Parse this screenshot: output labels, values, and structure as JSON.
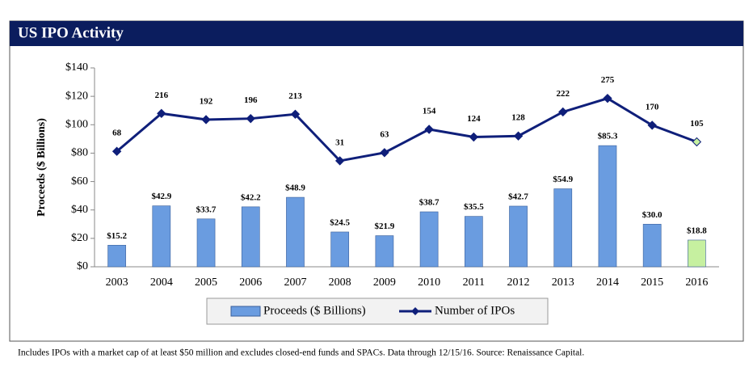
{
  "chart_data": {
    "type": "bar_line",
    "title": "US IPO Activity",
    "y_label": "Proceeds ($ Billions)",
    "footnote": "Includes IPOs with a market cap of at least $50 million and excludes closed-end funds and SPACs. Data through 12/15/16. Source: Renaissance Capital.",
    "categories": [
      "2003",
      "2004",
      "2005",
      "2006",
      "2007",
      "2008",
      "2009",
      "2010",
      "2011",
      "2012",
      "2013",
      "2014",
      "2015",
      "2016"
    ],
    "series": [
      {
        "name": "Proceeds ($ Billions)",
        "type": "bar",
        "color": "#6a9ce0",
        "colors": [
          "#6a9ce0",
          "#6a9ce0",
          "#6a9ce0",
          "#6a9ce0",
          "#6a9ce0",
          "#6a9ce0",
          "#6a9ce0",
          "#6a9ce0",
          "#6a9ce0",
          "#6a9ce0",
          "#6a9ce0",
          "#6a9ce0",
          "#6a9ce0",
          "#c6f0a0"
        ],
        "values": [
          15.2,
          42.9,
          33.7,
          42.2,
          48.9,
          24.5,
          21.9,
          38.7,
          35.5,
          42.7,
          54.9,
          85.3,
          30.0,
          18.8
        ],
        "value_labels": [
          "$15.2",
          "$42.9",
          "$33.7",
          "$42.2",
          "$48.9",
          "$24.5",
          "$21.9",
          "$38.7",
          "$35.5",
          "$42.7",
          "$54.9",
          "$85.3",
          "$30.0",
          "$18.8"
        ]
      },
      {
        "name": "Number of IPOs",
        "type": "line",
        "axis": "y2",
        "color": "#0f1f7a",
        "marker_colors": [
          "#0f1f7a",
          "#0f1f7a",
          "#0f1f7a",
          "#0f1f7a",
          "#0f1f7a",
          "#0f1f7a",
          "#0f1f7a",
          "#0f1f7a",
          "#0f1f7a",
          "#0f1f7a",
          "#0f1f7a",
          "#0f1f7a",
          "#0f1f7a",
          "#c6f0a0"
        ],
        "values": [
          68,
          216,
          192,
          196,
          213,
          31,
          63,
          154,
          124,
          128,
          222,
          275,
          170,
          105
        ]
      }
    ],
    "ylim": [
      0,
      140
    ],
    "yticks": [
      {
        "value": 0,
        "label": "$0"
      },
      {
        "value": 20,
        "label": "$20"
      },
      {
        "value": 40,
        "label": "$40"
      },
      {
        "value": 60,
        "label": "$60"
      },
      {
        "value": 80,
        "label": "$80"
      },
      {
        "value": 100,
        "label": "$100"
      },
      {
        "value": 120,
        "label": "$120"
      },
      {
        "value": 140,
        "label": "$140"
      }
    ],
    "y2lim": [
      -383,
      394
    ],
    "grid": false,
    "legend": "bottom"
  }
}
